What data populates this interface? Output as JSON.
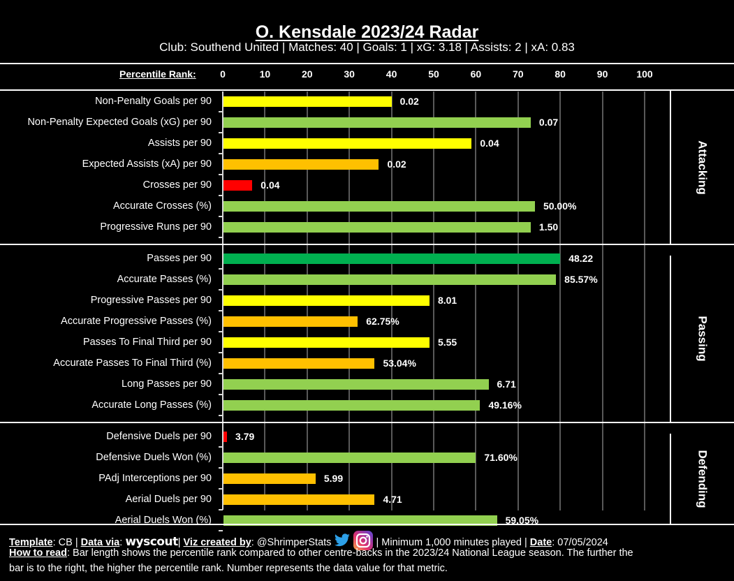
{
  "header": {
    "title": "O. Kensdale 2023/24 Radar",
    "subtitle": "Club: Southend United | Matches: 40 | Goals: 1 | xG: 3.18 | Assists: 2 | xA: 0.83"
  },
  "colors": {
    "background": "#000000",
    "red": "#ff0000",
    "orange": "#ffc000",
    "yellow": "#ffff00",
    "light_green": "#92d050",
    "dark_green": "#00b050",
    "grid": "#595959"
  },
  "chart_data": {
    "type": "bar",
    "orientation": "horizontal",
    "title": "O. Kensdale 2023/24 Radar",
    "xlabel": "Percentile Rank:",
    "xlim": [
      0,
      100
    ],
    "xticks": [
      "0",
      "10",
      "20",
      "30",
      "40",
      "50",
      "60",
      "70",
      "80",
      "90",
      "100"
    ],
    "grid": true,
    "sections": [
      {
        "name": "Attacking",
        "metrics": [
          {
            "label": "Non-Penalty Goals per 90",
            "percentile": 40,
            "value_label": "0.02",
            "color": "yellow"
          },
          {
            "label": "Non-Penalty Expected Goals (xG) per 90",
            "percentile": 73,
            "value_label": "0.07",
            "color": "light_green"
          },
          {
            "label": "Assists per 90",
            "percentile": 59,
            "value_label": "0.04",
            "color": "yellow"
          },
          {
            "label": "Expected Assists (xA) per 90",
            "percentile": 37,
            "value_label": "0.02",
            "color": "orange"
          },
          {
            "label": "Crosses per 90",
            "percentile": 7,
            "value_label": "0.04",
            "color": "red"
          },
          {
            "label": "Accurate Crosses (%)",
            "percentile": 74,
            "value_label": "50.00%",
            "color": "light_green"
          },
          {
            "label": "Progressive Runs per 90",
            "percentile": 73,
            "value_label": "1.50",
            "color": "light_green"
          }
        ]
      },
      {
        "name": "Passing",
        "metrics": [
          {
            "label": "Passes per 90",
            "percentile": 80,
            "value_label": "48.22",
            "color": "dark_green"
          },
          {
            "label": "Accurate Passes (%)",
            "percentile": 79,
            "value_label": "85.57%",
            "color": "light_green"
          },
          {
            "label": "Progressive Passes per 90",
            "percentile": 49,
            "value_label": "8.01",
            "color": "yellow"
          },
          {
            "label": "Accurate Progressive Passes (%)",
            "percentile": 32,
            "value_label": "62.75%",
            "color": "orange"
          },
          {
            "label": "Passes To Final Third per 90",
            "percentile": 49,
            "value_label": "5.55",
            "color": "yellow"
          },
          {
            "label": "Accurate Passes To Final Third (%)",
            "percentile": 36,
            "value_label": "53.04%",
            "color": "orange"
          },
          {
            "label": "Long Passes per 90",
            "percentile": 63,
            "value_label": "6.71",
            "color": "light_green"
          },
          {
            "label": "Accurate Long Passes (%)",
            "percentile": 61,
            "value_label": "49.16%",
            "color": "light_green"
          }
        ]
      },
      {
        "name": "Defending",
        "metrics": [
          {
            "label": "Defensive Duels per 90",
            "percentile": 1,
            "value_label": "3.79",
            "color": "red"
          },
          {
            "label": "Defensive Duels Won (%)",
            "percentile": 60,
            "value_label": "71.60%",
            "color": "light_green"
          },
          {
            "label": "PAdj Interceptions per 90",
            "percentile": 22,
            "value_label": "5.99",
            "color": "orange"
          },
          {
            "label": "Aerial Duels per 90",
            "percentile": 36,
            "value_label": "4.71",
            "color": "orange"
          },
          {
            "label": "Aerial Duels Won (%)",
            "percentile": 65,
            "value_label": "59.05%",
            "color": "light_green"
          }
        ]
      }
    ]
  },
  "footer": {
    "template_label": "Template",
    "template_value": ": CB | ",
    "data_via_label": "Data via",
    "data_via_sep": ": ",
    "data_source_logo": "wyscout",
    "viz_sep": "| ",
    "viz_label": "Viz created by",
    "viz_value": ": @ShrimperStats",
    "twitter_icon": "twitter-bird-icon",
    "instagram_icon": "instagram-icon",
    "min_minutes": " | Minimum 1,000 minutes played | ",
    "date_label": "Date",
    "date_value": ": 07/05/2024",
    "how_to_read_label": "How to read",
    "how_to_read_line1": ": Bar length shows the percentile rank compared to other centre-backs in the 2023/24 National League season. The further the",
    "how_to_read_line2": "bar is to the right, the higher the percentile rank. Number represents the data value for that metric."
  }
}
